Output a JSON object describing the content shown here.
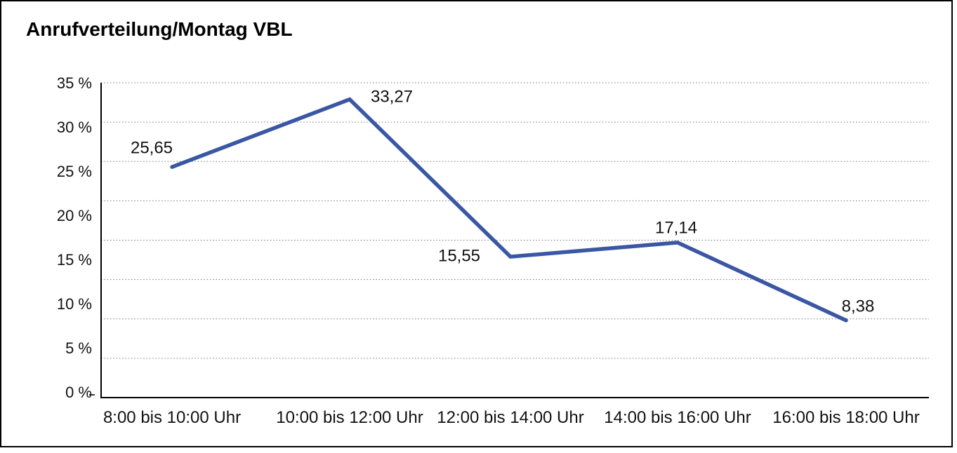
{
  "frame": {
    "background": "#ffffff",
    "border_color": "#000000"
  },
  "chart_data": {
    "type": "line",
    "title": "Anrufverteilung/Montag VBL",
    "categories": [
      "8:00 bis 10:00 Uhr",
      "10:00 bis 12:00 Uhr",
      "12:00 bis 14:00 Uhr",
      "14:00 bis 16:00 Uhr",
      "16:00 bis 18:00 Uhr"
    ],
    "values": [
      25.65,
      33.27,
      15.55,
      17.14,
      8.38
    ],
    "value_labels": [
      "25,65",
      "33,27",
      "15,55",
      "17,14",
      "8,38"
    ],
    "xlabel": "",
    "ylabel": "",
    "y_tick_labels": [
      "35 %",
      "30 %",
      "25 %",
      "20 %",
      "15 %",
      "10 %",
      "5 %",
      "0 %"
    ],
    "ylim": [
      0,
      35
    ],
    "y_tick_step": 5,
    "grid": "horizontal-dotted",
    "legend_position": "none",
    "line_color": "#3A57A4",
    "grid_color": "#777777",
    "axis_color": "#000000",
    "text_color": "#111111"
  }
}
